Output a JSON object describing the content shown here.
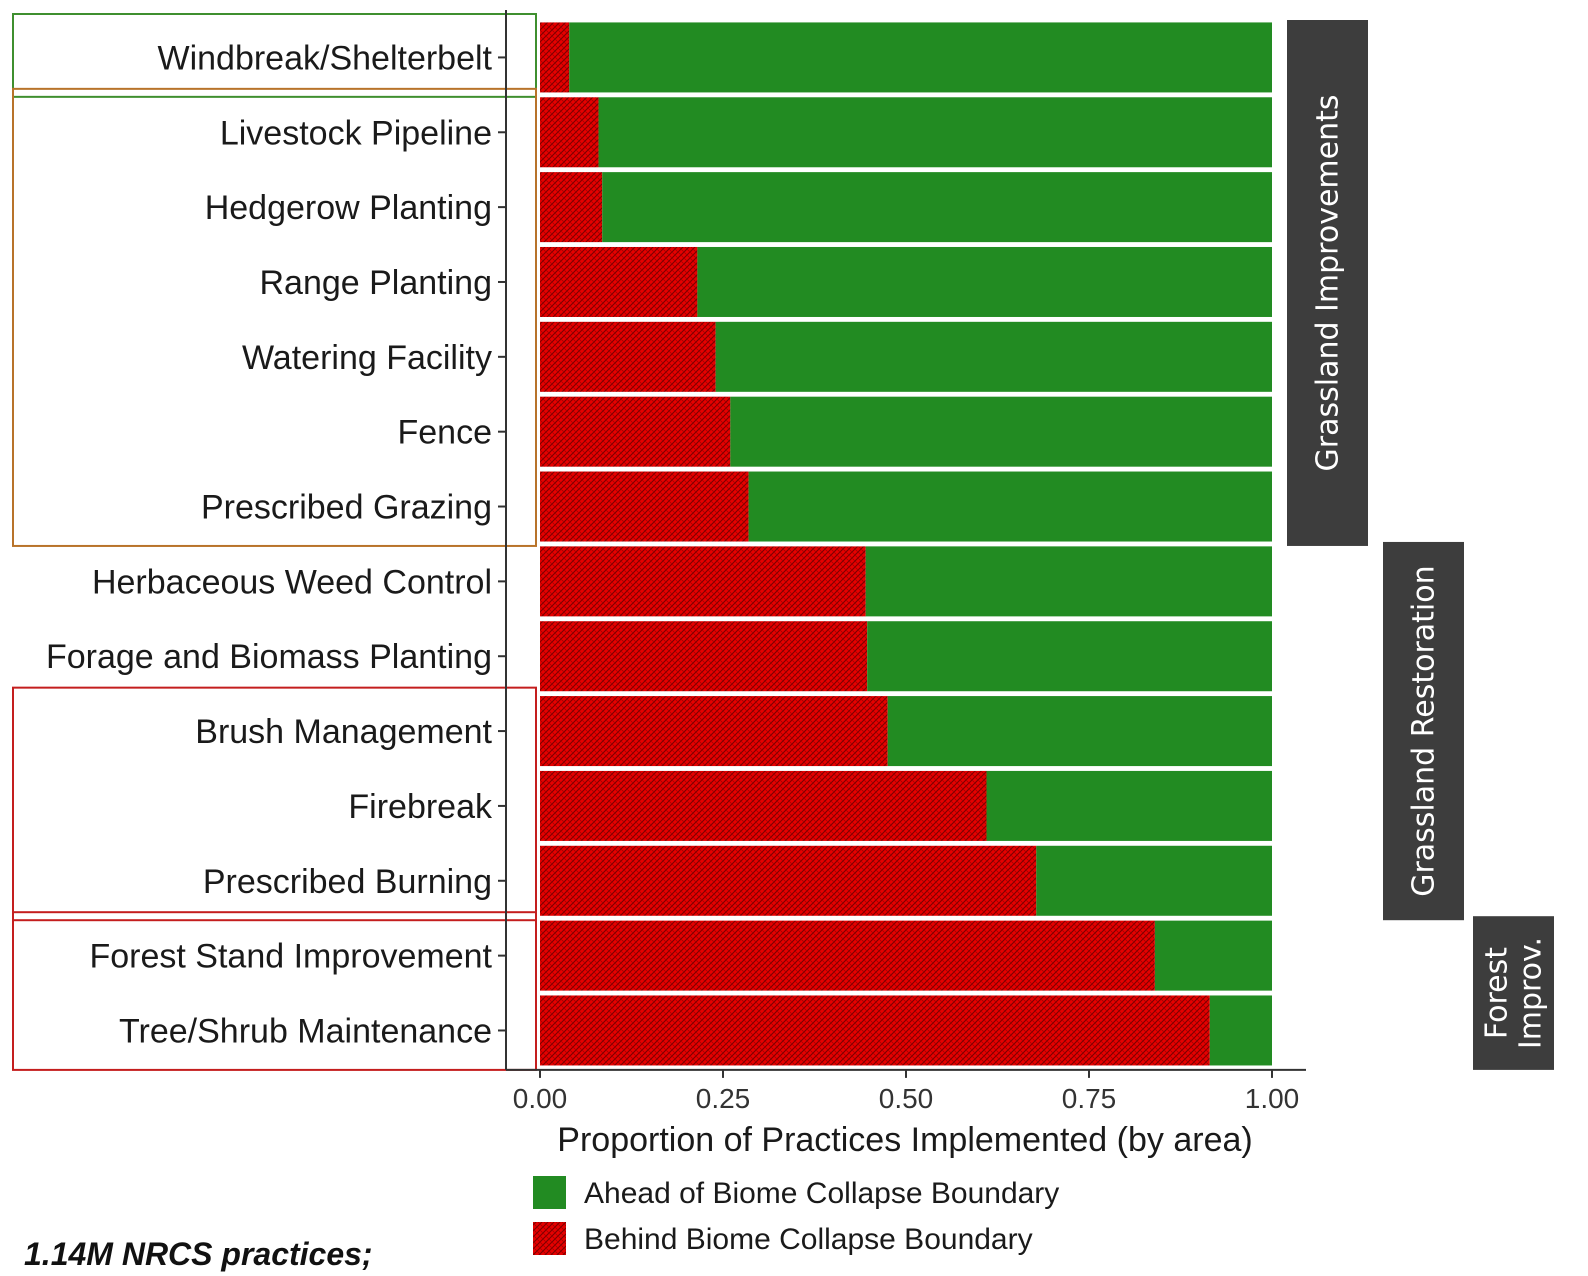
{
  "chart_data": {
    "type": "bar",
    "orientation": "horizontal",
    "stacked": true,
    "xlabel": "Proportion of Practices Implemented (by area)",
    "ylabel": "",
    "xlim": [
      0,
      1
    ],
    "x_ticks": [
      "0.00",
      "0.25",
      "0.50",
      "0.75",
      "1.00"
    ],
    "grid": false,
    "legend_position": "bottom-left",
    "categories": [
      "Windbreak/Shelterbelt",
      "Livestock Pipeline",
      "Hedgerow Planting",
      "Range Planting",
      "Watering Facility",
      "Fence",
      "Prescribed Grazing",
      "Herbaceous Weed Control",
      "Forage and Biomass Planting",
      "Brush Management",
      "Firebreak",
      "Prescribed Burning",
      "Forest Stand Improvement",
      "Tree/Shrub Maintenance"
    ],
    "series": [
      {
        "name": "Behind Biome Collapse Boundary",
        "color": "#e00000",
        "pattern": "crosshatch",
        "values": [
          0.04,
          0.08,
          0.085,
          0.215,
          0.24,
          0.26,
          0.285,
          0.445,
          0.447,
          0.475,
          0.61,
          0.678,
          0.84,
          0.915
        ]
      },
      {
        "name": "Ahead of Biome Collapse Boundary",
        "color": "#228b22",
        "values": [
          0.96,
          0.92,
          0.915,
          0.785,
          0.76,
          0.74,
          0.715,
          0.555,
          0.553,
          0.525,
          0.39,
          0.322,
          0.16,
          0.085
        ]
      }
    ],
    "facets": [
      {
        "label": "Grassland Improvements",
        "from": 0,
        "to": 6
      },
      {
        "label": "Grassland Restoration",
        "from": 7,
        "to": 11
      },
      {
        "label_lines": [
          "Forest",
          "Improv."
        ],
        "from": 12,
        "to": 13
      }
    ],
    "group_boxes": [
      {
        "from": 0,
        "to": 0,
        "color": "#3f8f2f"
      },
      {
        "from": 1,
        "to": 6,
        "color": "#b8732a"
      },
      {
        "from": 9,
        "to": 11,
        "color": "#c41e1e"
      },
      {
        "from": 12,
        "to": 13,
        "color": "#c41e1e"
      }
    ]
  },
  "footnote": "1.14M NRCS practices;"
}
